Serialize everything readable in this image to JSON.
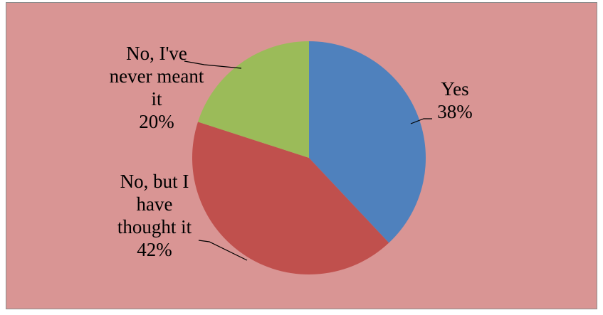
{
  "chart_data": {
    "type": "pie",
    "title": "",
    "start_angle_deg": 0,
    "direction": "clockwise",
    "legend": "none",
    "slices": [
      {
        "label_lines": [
          "Yes"
        ],
        "percent_label": "38%",
        "value": 38,
        "color": "#4f81bd"
      },
      {
        "label_lines": [
          "No, but I",
          "have",
          "thought it"
        ],
        "percent_label": "42%",
        "value": 42,
        "color": "#c0504d"
      },
      {
        "label_lines": [
          "No, I've",
          "never meant",
          "it"
        ],
        "percent_label": "20%",
        "value": 20,
        "color": "#9bbb59"
      }
    ]
  },
  "colors": {
    "plot_background": "#d99594",
    "page_background": "#ffffff",
    "frame_border": "#8c8c8c"
  }
}
